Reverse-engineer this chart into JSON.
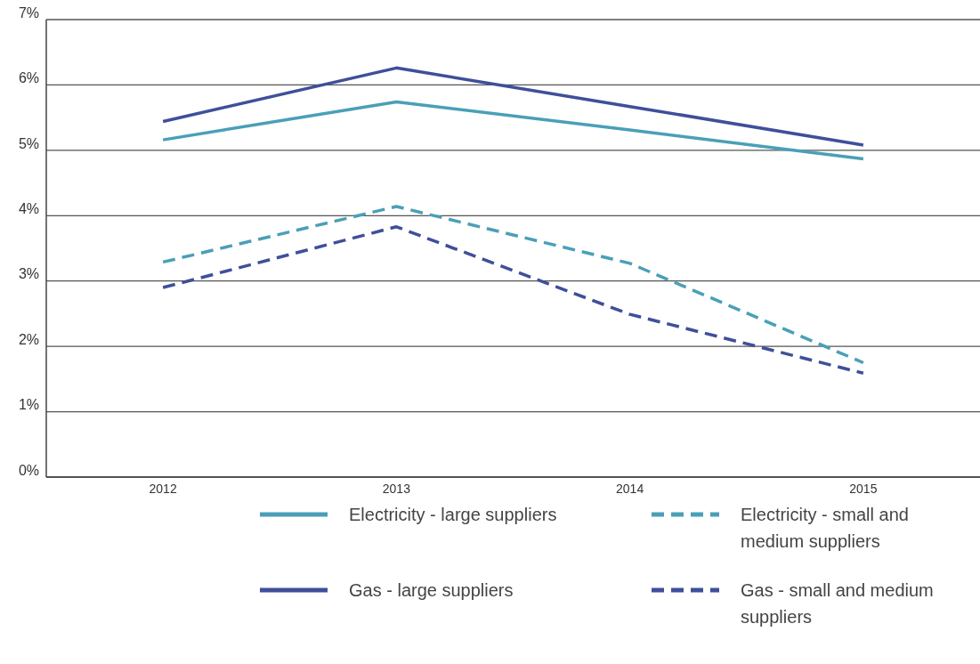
{
  "chart_data": {
    "type": "line",
    "categories": [
      "2012",
      "2013",
      "2014",
      "2015"
    ],
    "series": [
      {
        "name": "Electricity - large suppliers",
        "color": "#4a9fb8",
        "line_style": "solid",
        "values": [
          5.16,
          5.74,
          5.31,
          4.87
        ]
      },
      {
        "name": "Electricity - small and medium suppliers",
        "color": "#4a9fb8",
        "line_style": "dashed",
        "values": [
          3.29,
          4.14,
          3.27,
          1.75
        ]
      },
      {
        "name": "Gas - large suppliers",
        "color": "#3f4f9a",
        "line_style": "solid",
        "values": [
          5.44,
          6.26,
          5.67,
          5.08
        ]
      },
      {
        "name": "Gas - small and medium suppliers",
        "color": "#3f4f9a",
        "line_style": "dashed",
        "values": [
          2.9,
          3.83,
          2.49,
          1.59
        ]
      }
    ],
    "ylim": [
      0,
      7
    ],
    "yticks": [
      {
        "value": 0,
        "label": "0%"
      },
      {
        "value": 1,
        "label": "1%"
      },
      {
        "value": 2,
        "label": "2%"
      },
      {
        "value": 3,
        "label": "3%"
      },
      {
        "value": 4,
        "label": "4%"
      },
      {
        "value": 5,
        "label": "5%"
      },
      {
        "value": 6,
        "label": "6%"
      },
      {
        "value": 7,
        "label": "7%"
      }
    ],
    "grid": "y",
    "legend": "bottom",
    "marker": "none"
  }
}
